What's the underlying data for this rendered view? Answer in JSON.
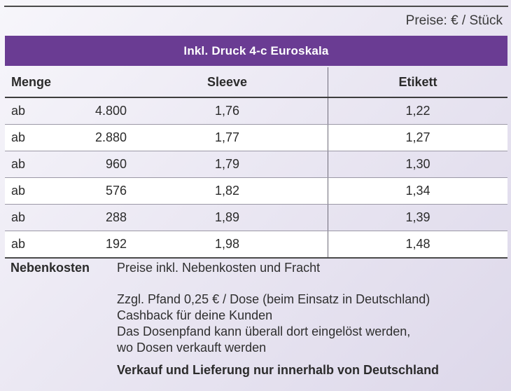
{
  "unit_note": "Preise: € / Stück",
  "banner_title": "Inkl. Druck 4-c Euroskala",
  "table": {
    "headers": {
      "menge": "Menge",
      "sleeve": "Sleeve",
      "etikett": "Etikett"
    },
    "rows": [
      {
        "prefix": "ab",
        "qty": "4.800",
        "sleeve": "1,76",
        "etikett": "1,22"
      },
      {
        "prefix": "ab",
        "qty": "2.880",
        "sleeve": "1,77",
        "etikett": "1,27"
      },
      {
        "prefix": "ab",
        "qty": "960",
        "sleeve": "1,79",
        "etikett": "1,30"
      },
      {
        "prefix": "ab",
        "qty": "576",
        "sleeve": "1,82",
        "etikett": "1,34"
      },
      {
        "prefix": "ab",
        "qty": "288",
        "sleeve": "1,89",
        "etikett": "1,39"
      },
      {
        "prefix": "ab",
        "qty": "192",
        "sleeve": "1,98",
        "etikett": "1,48"
      }
    ]
  },
  "nebenkosten": {
    "label": "Nebenkosten",
    "line1": "Preise inkl. Nebenkosten und Fracht",
    "line2": "Zzgl. Pfand 0,25 € / Dose (beim Einsatz in Deutschland)",
    "line3": "Cashback für deine Kunden",
    "line4": "Das Dosenpfand kann überall dort eingelöst werden,",
    "line5": "wo Dosen verkauft werden",
    "line6": "Verkauf und Lieferung nur innerhalb von Deutschland"
  }
}
